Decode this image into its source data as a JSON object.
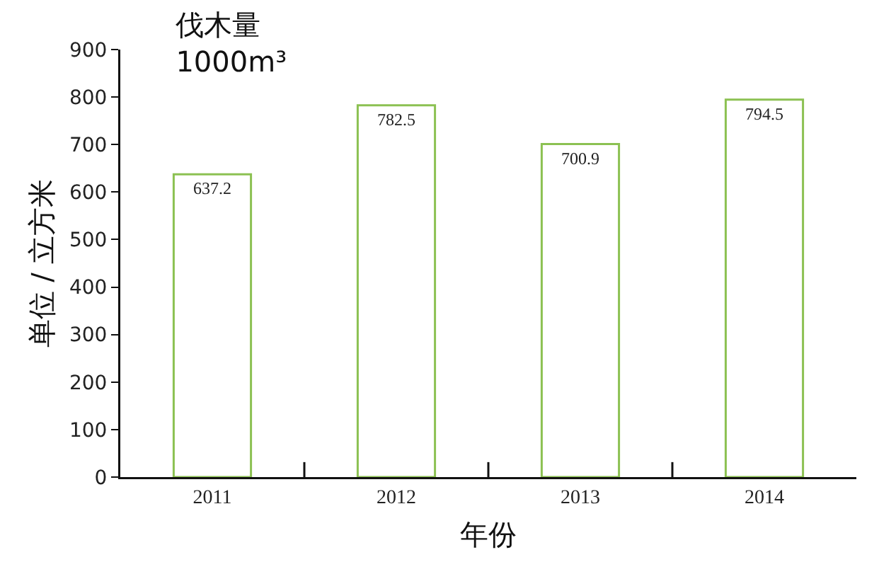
{
  "chart_data": {
    "type": "bar",
    "title": "伐木量",
    "subtitle": "1000m³",
    "xlabel": "年份",
    "ylabel": "单位 / 立方米",
    "categories": [
      "2011",
      "2012",
      "2013",
      "2014"
    ],
    "values": [
      637.2,
      782.5,
      700.9,
      794.5
    ],
    "color": "#8cc152",
    "ylim": [
      0,
      900
    ],
    "yticks": [
      0,
      100,
      200,
      300,
      400,
      500,
      600,
      700,
      800,
      900
    ],
    "data_labels": true
  }
}
